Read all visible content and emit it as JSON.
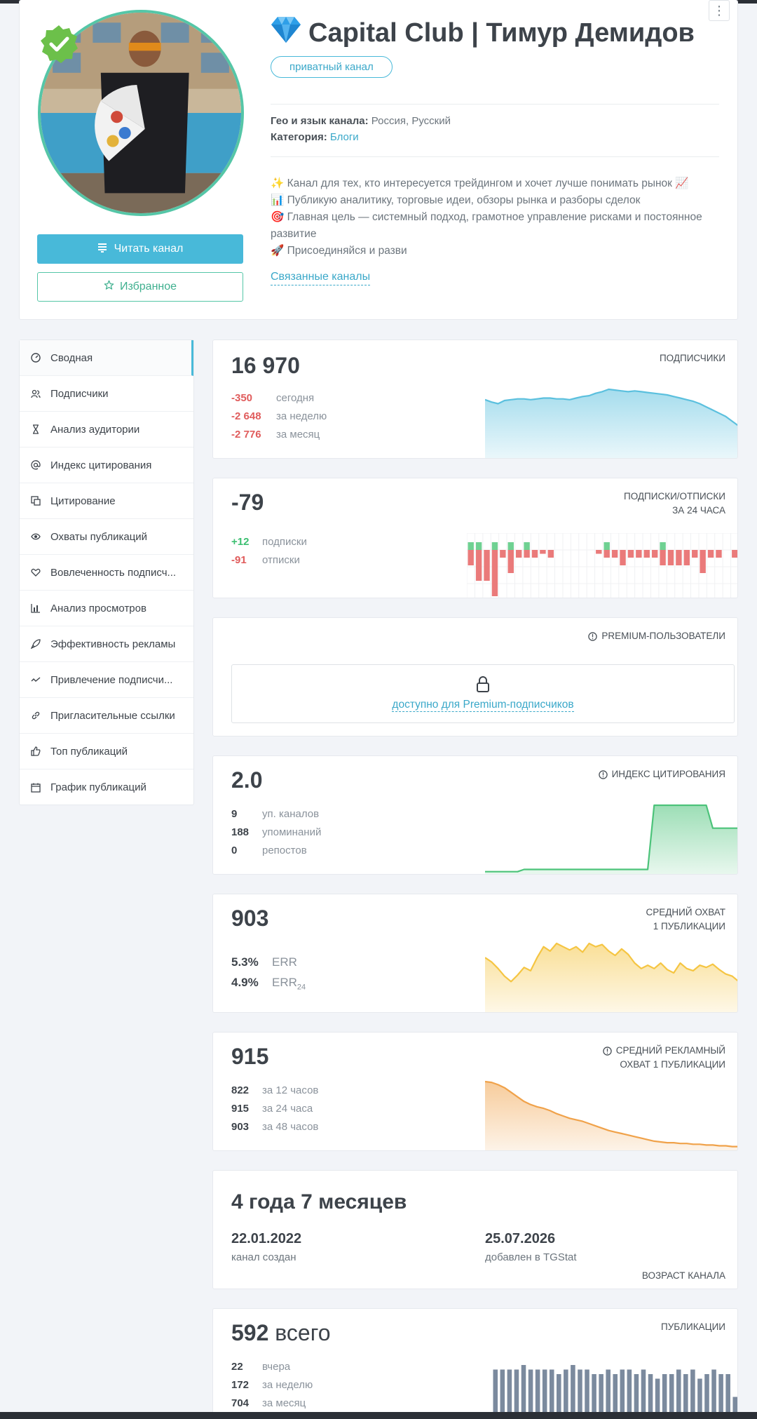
{
  "channel": {
    "title": "Capital Club | Тимур Демидов",
    "badge": "приватный канал",
    "geo_label": "Гео и язык канала:",
    "geo_value": "Россия, Русский",
    "category_label": "Категория:",
    "category_value": "Блоги",
    "description": [
      "✨ Канал для тех, кто интересуется трейдингом и хочет лучше понимать рынок 📈",
      "📊 Публикую аналитику, торговые идеи, обзоры рынка и разборы сделок",
      "🎯 Главная цель — системный подход, грамотное управление рисками и постоянное развитие",
      "🚀 Присоединяйся и разви"
    ],
    "related_link": "Связанные каналы",
    "read_button": "Читать канал",
    "fav_button": "Избранное",
    "kebab": "⋮"
  },
  "sidebar": {
    "items": [
      {
        "label": "Сводная",
        "icon": "dashboard-icon"
      },
      {
        "label": "Подписчики",
        "icon": "users-icon"
      },
      {
        "label": "Анализ аудитории",
        "icon": "hourglass-icon"
      },
      {
        "label": "Индекс цитирования",
        "icon": "at-icon"
      },
      {
        "label": "Цитирование",
        "icon": "quote-icon"
      },
      {
        "label": "Охваты публикаций",
        "icon": "eye-icon"
      },
      {
        "label": "Вовлеченность подписч...",
        "icon": "heart-icon"
      },
      {
        "label": "Анализ просмотров",
        "icon": "bar-chart-icon"
      },
      {
        "label": "Эффективность рекламы",
        "icon": "rocket-icon"
      },
      {
        "label": "Привлечение подписчи...",
        "icon": "trend-icon"
      },
      {
        "label": "Пригласительные ссылки",
        "icon": "link-icon"
      },
      {
        "label": "Топ публикаций",
        "icon": "thumbs-up-icon"
      },
      {
        "label": "График публикаций",
        "icon": "calendar-icon"
      }
    ]
  },
  "subscribers": {
    "value": "16 970",
    "label": "ПОДПИСЧИКИ",
    "rows": [
      {
        "v": "-350",
        "t": "сегодня"
      },
      {
        "v": "-2 648",
        "t": "за неделю"
      },
      {
        "v": "-2 776",
        "t": "за месяц"
      }
    ],
    "chart_data": {
      "type": "area",
      "color": "#5bc0de",
      "values": [
        73,
        70,
        68,
        72,
        73,
        74,
        74,
        73,
        74,
        75,
        75,
        74,
        74,
        73,
        75,
        77,
        78,
        81,
        83,
        86,
        85,
        84,
        83,
        84,
        83,
        82,
        81,
        80,
        79,
        77,
        75,
        73,
        71,
        68,
        64,
        60,
        56,
        52,
        46,
        40
      ]
    }
  },
  "subs_unsubs": {
    "value": "-79",
    "label_line1": "ПОДПИСКИ/ОТПИСКИ",
    "label_line2": "ЗА 24 ЧАСА",
    "rows": [
      {
        "v": "+12",
        "t": "подписки"
      },
      {
        "v": "-91",
        "t": "отписки"
      }
    ],
    "chart_data": {
      "type": "bar",
      "colors": {
        "plus": "#6fd192",
        "minus": "#ea7a7a"
      },
      "plus": [
        1,
        1,
        0,
        1,
        0,
        1,
        0,
        1,
        0,
        0,
        0,
        0,
        0,
        0,
        0,
        0,
        0,
        1,
        0,
        0,
        0,
        0,
        0,
        0,
        1,
        0,
        0,
        0,
        0,
        0,
        0,
        0,
        0,
        0
      ],
      "minus": [
        2,
        4,
        4,
        6,
        1,
        3,
        1,
        1,
        1,
        0.5,
        1,
        0,
        0,
        0,
        0,
        0,
        0.5,
        1,
        1,
        2,
        1,
        1,
        1,
        1,
        2,
        2,
        2,
        2,
        1,
        3,
        1,
        1,
        0,
        1
      ]
    }
  },
  "premium": {
    "label": "PREMIUM-ПОЛЬЗОВАТЕЛИ",
    "link": "доступно для Premium-подписчиков"
  },
  "citation": {
    "value": "2.0",
    "label": "ИНДЕКС ЦИТИРОВАНИЯ",
    "rows": [
      {
        "v": "9",
        "t": "уп. каналов"
      },
      {
        "v": "188",
        "t": "упоминаний"
      },
      {
        "v": "0",
        "t": "репостов"
      }
    ],
    "chart_data": {
      "type": "area",
      "color": "#4cc37a",
      "values": [
        1,
        1,
        1,
        1,
        1,
        1,
        2,
        2,
        2,
        2,
        2,
        2,
        2,
        2,
        2,
        2,
        2,
        2,
        2,
        2,
        2,
        2,
        2,
        2,
        2,
        2,
        30,
        30,
        30,
        30,
        30,
        30,
        30,
        30,
        30,
        20,
        20,
        20,
        20,
        20
      ]
    }
  },
  "reach": {
    "value": "903",
    "label_line1": "СРЕДНИЙ ОХВАТ",
    "label_line2": "1 ПУБЛИКАЦИИ",
    "rows": [
      {
        "v": "5.3%",
        "t": "ERR"
      },
      {
        "v": "4.9%",
        "t": "ERR",
        "sub": "24"
      }
    ],
    "chart_data": {
      "type": "area",
      "color": "#f5c542",
      "values": [
        50,
        46,
        40,
        33,
        28,
        34,
        41,
        38,
        50,
        60,
        56,
        63,
        60,
        57,
        60,
        55,
        63,
        60,
        62,
        56,
        52,
        58,
        53,
        45,
        40,
        43,
        40,
        45,
        39,
        36,
        45,
        40,
        38,
        43,
        41,
        44,
        39,
        35,
        33,
        28
      ]
    }
  },
  "ad_reach": {
    "value": "915",
    "label_line1": "СРЕДНИЙ РЕКЛАМНЫЙ",
    "label_line2": "ОХВАТ 1 ПУБЛИКАЦИИ",
    "rows": [
      {
        "v": "822",
        "t": "за 12 часов"
      },
      {
        "v": "915",
        "t": "за 24 часа"
      },
      {
        "v": "903",
        "t": "за 48 часов"
      }
    ],
    "chart_data": {
      "type": "area",
      "color": "#f0a24a",
      "values": [
        90,
        89,
        86,
        82,
        76,
        70,
        64,
        60,
        57,
        55,
        52,
        48,
        45,
        42,
        40,
        38,
        35,
        32,
        29,
        26,
        24,
        22,
        20,
        18,
        16,
        14,
        12,
        11,
        10,
        10,
        9,
        9,
        8,
        8,
        7,
        7,
        6,
        6,
        5,
        5
      ]
    }
  },
  "age": {
    "title": "4 года 7 месяцев",
    "created_date": "22.01.2022",
    "created_label": "канал создан",
    "added_date": "25.07.2026",
    "added_label": "добавлен в TGStat",
    "label": "ВОЗРАСТ КАНАЛА"
  },
  "posts": {
    "value": "592",
    "value_suffix": "всего",
    "label": "ПУБЛИКАЦИИ",
    "rows": [
      {
        "v": "22",
        "t": "вчера"
      },
      {
        "v": "172",
        "t": "за неделю"
      },
      {
        "v": "704",
        "t": "за месяц"
      }
    ],
    "chart_data": {
      "type": "bar",
      "color": "#7b8a9e",
      "values": [
        22,
        22,
        22,
        22,
        24,
        22,
        22,
        22,
        22,
        20,
        22,
        24,
        22,
        22,
        20,
        20,
        22,
        20,
        22,
        22,
        20,
        22,
        20,
        18,
        20,
        20,
        22,
        20,
        22,
        18,
        20,
        22,
        20,
        20,
        10
      ]
    }
  }
}
